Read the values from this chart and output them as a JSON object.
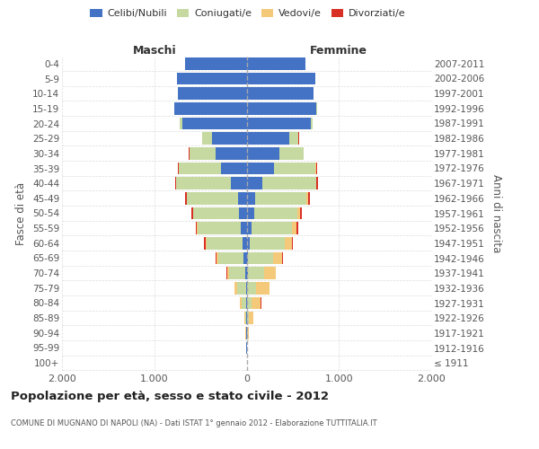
{
  "age_groups": [
    "0-4",
    "5-9",
    "10-14",
    "15-19",
    "20-24",
    "25-29",
    "30-34",
    "35-39",
    "40-44",
    "45-49",
    "50-54",
    "55-59",
    "60-64",
    "65-69",
    "70-74",
    "75-79",
    "80-84",
    "85-89",
    "90-94",
    "95-99",
    "100+"
  ],
  "birth_years": [
    "2007-2011",
    "2002-2006",
    "1997-2001",
    "1992-1996",
    "1987-1991",
    "1982-1986",
    "1977-1981",
    "1972-1976",
    "1967-1971",
    "1962-1966",
    "1957-1961",
    "1952-1956",
    "1947-1951",
    "1942-1946",
    "1937-1941",
    "1932-1936",
    "1927-1931",
    "1922-1926",
    "1917-1921",
    "1912-1916",
    "≤ 1911"
  ],
  "males": {
    "celibi": [
      670,
      750,
      740,
      780,
      695,
      370,
      340,
      280,
      170,
      95,
      85,
      68,
      48,
      30,
      15,
      8,
      4,
      3,
      2,
      1,
      0
    ],
    "coniugati": [
      0,
      0,
      0,
      5,
      28,
      108,
      280,
      450,
      590,
      550,
      490,
      460,
      385,
      275,
      175,
      95,
      48,
      15,
      5,
      1,
      0
    ],
    "vedovi": [
      0,
      0,
      0,
      0,
      1,
      1,
      1,
      2,
      3,
      5,
      8,
      10,
      14,
      22,
      22,
      28,
      18,
      10,
      5,
      0,
      0
    ],
    "divorziati": [
      0,
      0,
      0,
      0,
      1,
      2,
      5,
      10,
      14,
      18,
      12,
      15,
      12,
      8,
      5,
      2,
      1,
      0,
      0,
      0,
      0
    ]
  },
  "females": {
    "nubili": [
      635,
      745,
      725,
      755,
      695,
      465,
      360,
      295,
      170,
      95,
      78,
      50,
      35,
      18,
      10,
      6,
      4,
      3,
      2,
      1,
      0
    ],
    "coniugate": [
      0,
      0,
      0,
      5,
      22,
      98,
      255,
      450,
      582,
      555,
      475,
      445,
      375,
      265,
      175,
      98,
      52,
      18,
      8,
      2,
      0
    ],
    "vedove": [
      0,
      0,
      0,
      0,
      1,
      1,
      2,
      5,
      7,
      12,
      28,
      48,
      78,
      98,
      128,
      145,
      98,
      48,
      15,
      2,
      0
    ],
    "divorziate": [
      0,
      0,
      0,
      0,
      1,
      2,
      5,
      14,
      19,
      24,
      14,
      17,
      14,
      10,
      8,
      3,
      2,
      1,
      0,
      0,
      0
    ]
  },
  "colors": {
    "celibi_nubili": "#4472C4",
    "coniugati_e": "#C5D9A0",
    "vedovi_e": "#F5C97A",
    "divorziati_e": "#D93025"
  },
  "xlim": 2000,
  "xticks": [
    -2000,
    -1000,
    0,
    1000,
    2000
  ],
  "xticklabels": [
    "2.000",
    "1.000",
    "0",
    "1.000",
    "2.000"
  ],
  "title": "Popolazione per età, sesso e stato civile - 2012",
  "subtitle": "COMUNE DI MUGNANO DI NAPOLI (NA) - Dati ISTAT 1° gennaio 2012 - Elaborazione TUTTITALIA.IT",
  "ylabel_left": "Fasce di età",
  "ylabel_right": "Anni di nascita",
  "legend_labels": [
    "Celibi/Nubili",
    "Coniugati/e",
    "Vedovi/e",
    "Divorziati/e"
  ],
  "background_color": "#ffffff",
  "grid_color": "#cccccc",
  "maschi_label": "Maschi",
  "femmine_label": "Femmine"
}
